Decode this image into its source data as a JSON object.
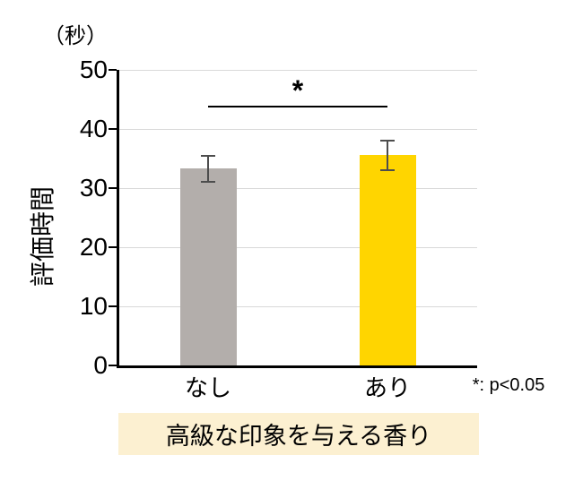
{
  "chart_data": {
    "type": "bar",
    "categories": [
      "なし",
      "あり"
    ],
    "values": [
      33.3,
      35.6
    ],
    "errors": [
      2.2,
      2.5
    ],
    "bar_colors": [
      "#b3aeab",
      "#ffd500"
    ],
    "ylabel": "評価時間",
    "y_unit": "（秒）",
    "xlabel": "高級な印象を与える香り",
    "ylim": [
      0,
      50
    ],
    "yticks": [
      0,
      10,
      20,
      30,
      40,
      50
    ],
    "grid": true,
    "legend": "none",
    "significance": {
      "pair": [
        0,
        1
      ],
      "label": "*",
      "line_y": 44,
      "note": "*: p<0.05"
    }
  },
  "colors": {
    "background": "#ffffff",
    "grid": "#d9d9d9",
    "axis": "#000000",
    "error_bar": "#4d4d4d",
    "group_label_bg": "#fcf0d1",
    "text": "#000000"
  }
}
